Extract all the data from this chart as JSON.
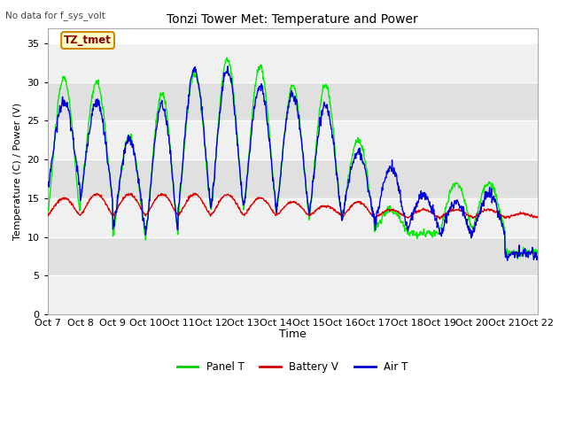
{
  "title": "Tonzi Tower Met: Temperature and Power",
  "top_left_text": "No data for f_sys_volt",
  "ylabel": "Temperature (C) / Power (V)",
  "xlabel": "Time",
  "ylim": [
    0,
    37
  ],
  "yticks": [
    0,
    5,
    10,
    15,
    20,
    25,
    30,
    35
  ],
  "xtick_labels": [
    "Oct 7",
    "Oct 8",
    "Oct 9",
    "Oct 10",
    "Oct 11",
    "Oct 12",
    "Oct 13",
    "Oct 14",
    "Oct 15",
    "Oct 16",
    "Oct 17",
    "Oct 18",
    "Oct 19",
    "Oct 20",
    "Oct 21",
    "Oct 22"
  ],
  "legend_labels": [
    "Panel T",
    "Battery V",
    "Air T"
  ],
  "legend_colors": [
    "#00cc00",
    "#cc0000",
    "#0000cc"
  ],
  "panel_t_color": "#00ee00",
  "battery_v_color": "#dd0000",
  "air_t_color": "#0000dd",
  "annotation_text": "TZ_tmet",
  "annotation_box_color": "#ffffcc",
  "annotation_box_edge": "#cc8800",
  "fig_bg": "#ffffff",
  "plot_bg": "#ffffff",
  "band_light": "#f0f0f0",
  "band_dark": "#e0e0e0",
  "grid_line_color": "#ffffff",
  "panel_t_lw": 1.0,
  "battery_v_lw": 1.0,
  "air_t_lw": 1.0,
  "panel_peaks": [
    30.5,
    30.0,
    23.0,
    28.5,
    31.0,
    33.0,
    32.0,
    29.5,
    29.5,
    22.5,
    13.5,
    10.5,
    17.0,
    17.0,
    8.0
  ],
  "panel_troughs": [
    13.0,
    14.5,
    10.0,
    10.0,
    13.5,
    13.5,
    13.5,
    13.0,
    12.5,
    12.5,
    11.0,
    10.5,
    11.0,
    11.0,
    8.0
  ],
  "air_peaks": [
    27.5,
    27.5,
    22.5,
    27.0,
    31.5,
    31.5,
    29.5,
    28.5,
    27.0,
    21.0,
    19.0,
    15.5,
    14.5,
    15.5,
    8.0
  ],
  "air_troughs": [
    16.5,
    15.0,
    11.0,
    10.5,
    14.0,
    14.0,
    14.0,
    13.5,
    13.0,
    12.5,
    11.5,
    11.0,
    10.0,
    10.5,
    7.5
  ],
  "batt_peaks": [
    15.0,
    15.5,
    15.5,
    15.5,
    15.5,
    15.5,
    15.0,
    14.5,
    14.0,
    14.5,
    13.5,
    13.5,
    13.5,
    13.5,
    13.0
  ],
  "batt_troughs": [
    12.8,
    12.8,
    12.8,
    12.8,
    12.8,
    12.8,
    12.8,
    12.8,
    12.8,
    12.5,
    12.5,
    12.5,
    12.5,
    12.5,
    12.5
  ]
}
